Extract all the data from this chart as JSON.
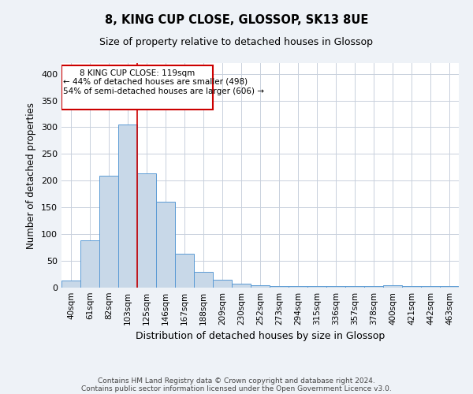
{
  "title1": "8, KING CUP CLOSE, GLOSSOP, SK13 8UE",
  "title2": "Size of property relative to detached houses in Glossop",
  "xlabel": "Distribution of detached houses by size in Glossop",
  "ylabel": "Number of detached properties",
  "categories": [
    "40sqm",
    "61sqm",
    "82sqm",
    "103sqm",
    "125sqm",
    "146sqm",
    "167sqm",
    "188sqm",
    "209sqm",
    "230sqm",
    "252sqm",
    "273sqm",
    "294sqm",
    "315sqm",
    "336sqm",
    "357sqm",
    "378sqm",
    "400sqm",
    "421sqm",
    "442sqm",
    "463sqm"
  ],
  "values": [
    14,
    88,
    210,
    305,
    213,
    160,
    64,
    30,
    15,
    8,
    5,
    3,
    3,
    3,
    3,
    3,
    3,
    5,
    3,
    3,
    3
  ],
  "bar_color": "#c8d8e8",
  "bar_edge_color": "#5b9bd5",
  "vline_color": "#cc0000",
  "annotation_text1": "8 KING CUP CLOSE: 119sqm",
  "annotation_text2": "← 44% of detached houses are smaller (498)",
  "annotation_text3": "54% of semi-detached houses are larger (606) →",
  "annotation_box_edge": "#cc0000",
  "ylim": [
    0,
    420
  ],
  "yticks": [
    0,
    50,
    100,
    150,
    200,
    250,
    300,
    350,
    400
  ],
  "footer1": "Contains HM Land Registry data © Crown copyright and database right 2024.",
  "footer2": "Contains public sector information licensed under the Open Government Licence v3.0.",
  "bg_color": "#eef2f7",
  "plot_bg_color": "#ffffff",
  "grid_color": "#c8d0dc"
}
